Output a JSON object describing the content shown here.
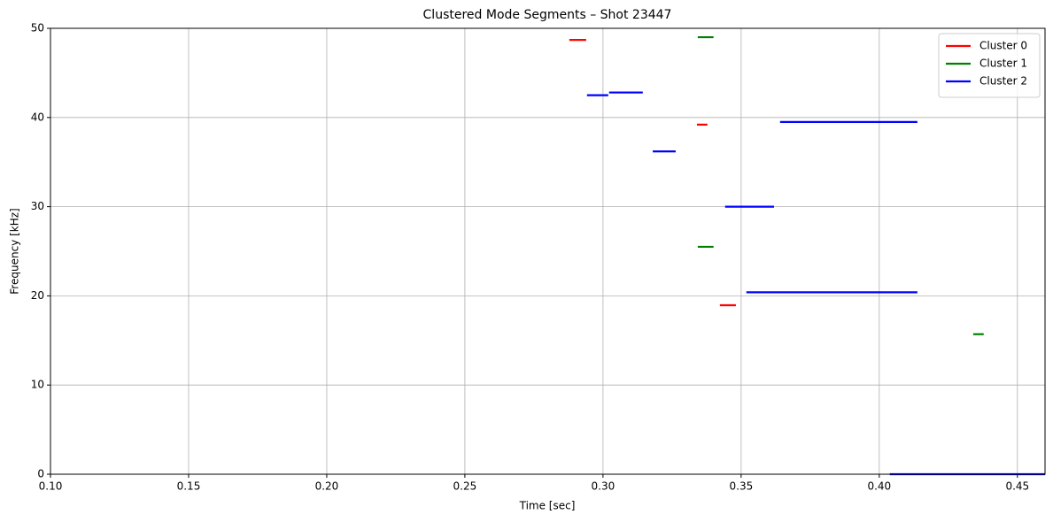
{
  "chart_data": {
    "type": "segments",
    "title": "Clustered Mode Segments – Shot 23447",
    "x_label": "Time [sec]",
    "y_label": "Frequency [kHz]",
    "xlim": [
      0.1,
      0.46
    ],
    "xticks": [
      {
        "value": 0.1,
        "label": "0.10"
      },
      0.15,
      {
        "value": 0.2,
        "label": "0.20"
      },
      0.25,
      {
        "value": 0.3,
        "label": "0.30"
      },
      0.35,
      {
        "value": 0.4,
        "label": "0.40"
      },
      0.45
    ],
    "ylim": [
      0,
      50
    ],
    "yticks": [
      0,
      10,
      20,
      30,
      40,
      50
    ],
    "grid": true,
    "legend": "upper right",
    "series": [
      {
        "name": "Cluster 0",
        "color": "#ff0000",
        "x_start": [
          0.2878,
          0.334,
          0.3423
        ],
        "x_end": [
          0.2939,
          0.3378,
          0.3481
        ],
        "values": [
          48.7,
          39.2,
          18.95
        ]
      },
      {
        "name": "Cluster 1",
        "color": "#008000",
        "x_start": [
          0.3343,
          0.3343,
          0.434
        ],
        "x_end": [
          0.34,
          0.34,
          0.4378
        ],
        "values": [
          49.0,
          25.5,
          15.7
        ]
      },
      {
        "name": "Cluster 2",
        "color": "#0000ff",
        "x_start": [
          0.2942,
          0.3022,
          0.318,
          0.3641,
          0.3442,
          0.3519,
          0.4038
        ],
        "x_end": [
          0.3019,
          0.3144,
          0.3263,
          0.4138,
          0.3619,
          0.4138,
          0.46
        ],
        "values": [
          42.5,
          42.8,
          36.2,
          39.5,
          30.0,
          20.4,
          0.0
        ]
      }
    ]
  }
}
